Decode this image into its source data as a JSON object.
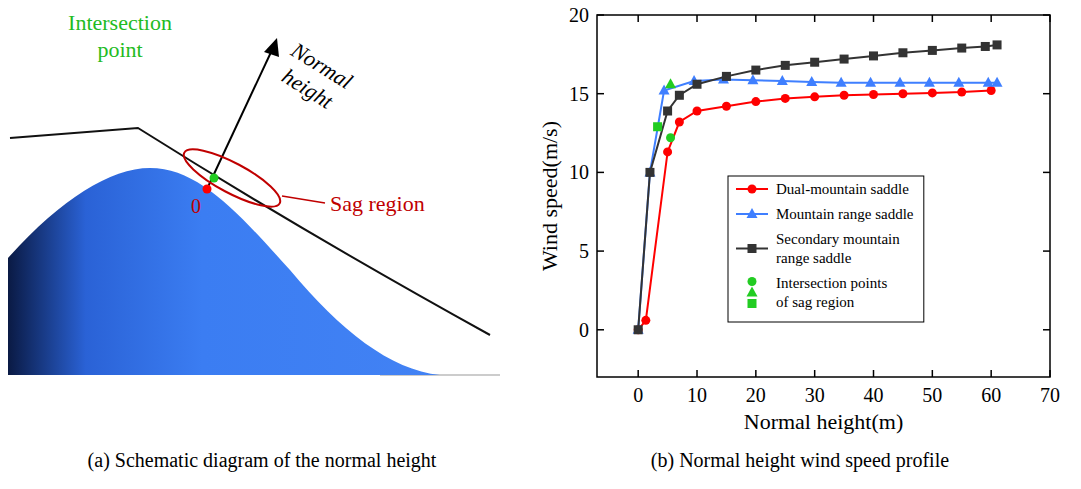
{
  "diagram": {
    "intersection_point": "Intersection point",
    "normal_height": "Normal height",
    "sag_region": "Sag region",
    "origin": "0",
    "caption": "(a) Schematic diagram of the normal height"
  },
  "chart_data": {
    "type": "line",
    "title": "(b) Normal height wind speed profile",
    "x_label": "Normal height(m)",
    "y_label": "Wind speed(m/s)",
    "xlim": [
      -7,
      70
    ],
    "xticks": [
      0,
      10,
      20,
      30,
      40,
      50,
      60,
      70
    ],
    "ylim": [
      -3,
      20
    ],
    "yticks": [
      0,
      5,
      10,
      15,
      20
    ],
    "grid": false,
    "legend": "center",
    "series": [
      {
        "name": "Dual-mountain saddle",
        "color": "#ff0000",
        "marker": "circle",
        "type": "line",
        "x": [
          0,
          1.3,
          5,
          7,
          10,
          15,
          20,
          25,
          30,
          35,
          40,
          45,
          50,
          55,
          60
        ],
        "values": [
          0,
          0.6,
          11.3,
          13.2,
          13.9,
          14.2,
          14.5,
          14.7,
          14.8,
          14.9,
          14.95,
          15.0,
          15.05,
          15.1,
          15.2
        ]
      },
      {
        "name": "Mountain range saddle",
        "color": "#3f7fff",
        "marker": "triangle",
        "type": "line",
        "x": [
          0,
          2,
          4.4,
          9.5,
          14.5,
          19.5,
          24.5,
          29.5,
          34.5,
          39.5,
          44.5,
          49.5,
          54.5,
          59.5,
          61
        ],
        "values": [
          0,
          10,
          15.2,
          15.8,
          15.9,
          15.85,
          15.8,
          15.75,
          15.7,
          15.7,
          15.7,
          15.7,
          15.7,
          15.7,
          15.7
        ]
      },
      {
        "name": "Secondary mountain range saddle",
        "color": "#333333",
        "marker": "square",
        "type": "line",
        "x": [
          0,
          2,
          5,
          7,
          10,
          15,
          20,
          25,
          30,
          35,
          40,
          45,
          50,
          55,
          59,
          61
        ],
        "values": [
          0,
          10,
          13.9,
          14.9,
          15.6,
          16.1,
          16.5,
          16.8,
          17.0,
          17.2,
          17.4,
          17.6,
          17.75,
          17.9,
          18.0,
          18.1
        ]
      },
      {
        "name": "Intersection points of sag region",
        "color": "#22cc22",
        "type": "scatter",
        "x": [
          5.5,
          5.5,
          3.3
        ],
        "values": [
          12.2,
          15.6,
          12.9
        ]
      }
    ]
  }
}
